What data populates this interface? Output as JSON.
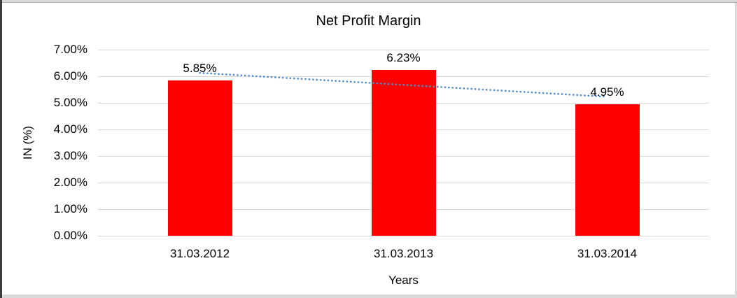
{
  "chart_data": {
    "type": "bar",
    "title": "Net Profit Margin",
    "xlabel": "Years",
    "ylabel": "IN (%)",
    "categories": [
      "31.03.2012",
      "31.03.2013",
      "31.03.2014"
    ],
    "values": [
      5.85,
      6.23,
      4.95
    ],
    "data_labels": [
      "5.85%",
      "6.23%",
      "4.95%"
    ],
    "ylim": [
      0,
      7
    ],
    "ytick_step": 1,
    "ytick_labels": [
      "0.00%",
      "1.00%",
      "2.00%",
      "3.00%",
      "4.00%",
      "5.00%",
      "6.00%",
      "7.00%"
    ],
    "grid": true,
    "legend": "none",
    "bar_color": "#FF0000",
    "gridline_color": "#D9D9D9",
    "trendline": {
      "type": "linear",
      "style": "dotted",
      "color": "#4F8BC9"
    }
  }
}
